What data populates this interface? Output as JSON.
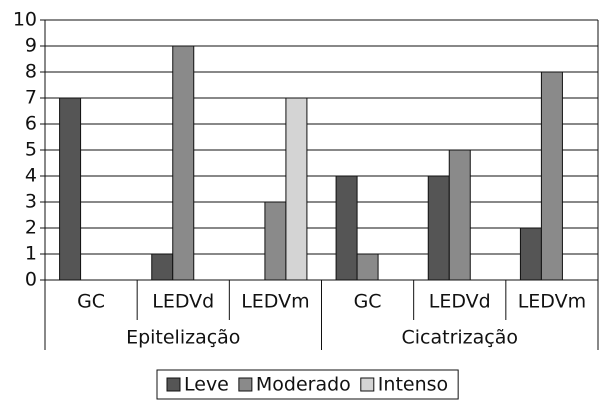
{
  "chart_data": {
    "type": "bar",
    "categories": [
      "GC",
      "LEDVd",
      "LEDVm",
      "GC",
      "LEDVd",
      "LEDVm"
    ],
    "groups": [
      "Epitelização",
      "Cicatrização"
    ],
    "series": [
      {
        "name": "Leve",
        "color": "#555555",
        "values": [
          7,
          1,
          0,
          4,
          4,
          2
        ]
      },
      {
        "name": "Moderado",
        "color": "#8a8a8a",
        "values": [
          0,
          9,
          3,
          1,
          5,
          8
        ]
      },
      {
        "name": "Intenso",
        "color": "#d4d4d4",
        "values": [
          0,
          0,
          7,
          0,
          0,
          0
        ]
      }
    ],
    "ylim": [
      0,
      10
    ],
    "yticks": [
      0,
      1,
      2,
      3,
      4,
      5,
      6,
      7,
      8,
      9,
      10
    ],
    "grid": true,
    "legend": "bottom"
  }
}
